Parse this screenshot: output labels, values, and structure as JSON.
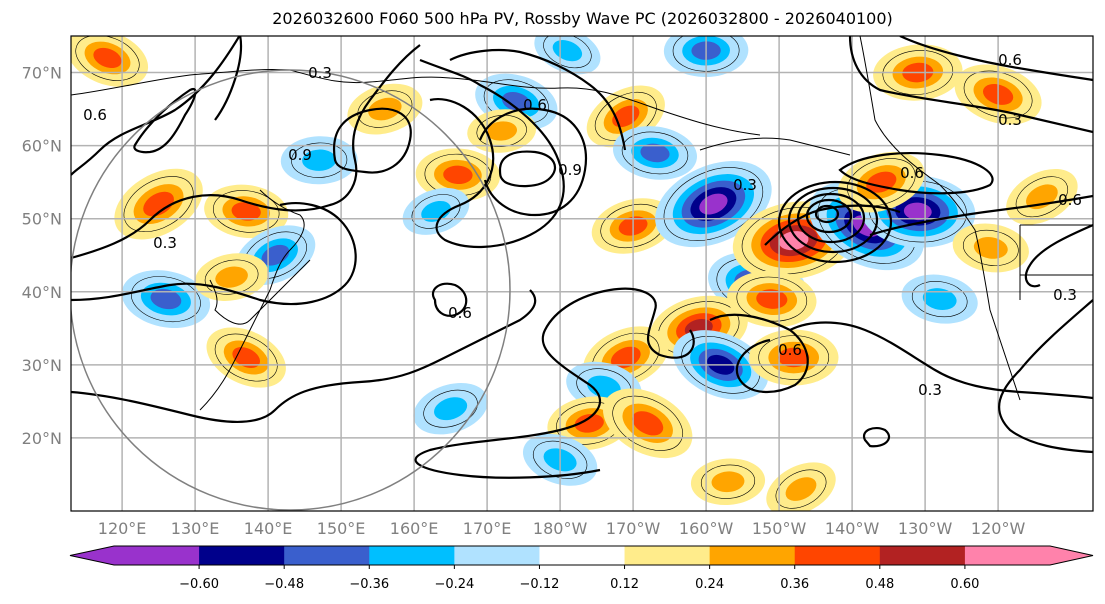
{
  "chart_data": {
    "type": "heatmap",
    "title": "2026032600 F060 500 hPa PV, Rossby Wave PC (2026032800 - 2026040100)",
    "projection": "cylindrical",
    "xlabel": "",
    "ylabel": "",
    "x_tick_labels": [
      "120°E",
      "130°E",
      "140°E",
      "150°E",
      "160°E",
      "170°E",
      "180°W",
      "170°W",
      "160°W",
      "150°W",
      "140°W",
      "130°W",
      "120°W"
    ],
    "x_ticks_lon": [
      120,
      130,
      140,
      150,
      160,
      170,
      180,
      190,
      200,
      210,
      220,
      230,
      240
    ],
    "y_tick_labels": [
      "70°N",
      "60°N",
      "50°N",
      "40°N",
      "30°N",
      "20°N"
    ],
    "y_ticks_lat": [
      70,
      60,
      50,
      40,
      30,
      20
    ],
    "xlim": [
      113,
      253
    ],
    "ylim": [
      10,
      75
    ],
    "grid": true,
    "colorbar": {
      "orientation": "horizontal",
      "extend": "both",
      "levels": [
        -0.6,
        -0.48,
        -0.36,
        -0.24,
        -0.12,
        0.12,
        0.24,
        0.36,
        0.48,
        0.6
      ],
      "tick_labels": [
        "−0.60",
        "−0.48",
        "−0.36",
        "−0.24",
        "−0.12",
        "0.12",
        "0.24",
        "0.36",
        "0.48",
        "0.60"
      ],
      "colors": [
        "#9932cc",
        "#00008b",
        "#3a5fcd",
        "#00bfff",
        "#b0e2ff",
        "#ffffff",
        "#ffec8b",
        "#ffa500",
        "#ff4500",
        "#b22222",
        "#ff82ab"
      ]
    },
    "contour_labels": [
      "0.3",
      "0.6",
      "0.9"
    ],
    "shaded_anomalies": [
      {
        "lon": 125,
        "lat": 52,
        "value": 0.45
      },
      {
        "lon": 137,
        "lat": 51,
        "value": 0.36
      },
      {
        "lon": 156,
        "lat": 65,
        "value": 0.3
      },
      {
        "lon": 118,
        "lat": 72,
        "value": 0.36
      },
      {
        "lon": 147,
        "lat": 58,
        "value": -0.3
      },
      {
        "lon": 141,
        "lat": 45,
        "value": -0.36
      },
      {
        "lon": 126,
        "lat": 39,
        "value": -0.4
      },
      {
        "lon": 135,
        "lat": 42,
        "value": 0.28
      },
      {
        "lon": 137,
        "lat": 31,
        "value": 0.36
      },
      {
        "lon": 166,
        "lat": 56,
        "value": 0.36
      },
      {
        "lon": 163,
        "lat": 51,
        "value": -0.24
      },
      {
        "lon": 174,
        "lat": 66,
        "value": -0.36
      },
      {
        "lon": 172,
        "lat": 62,
        "value": 0.24
      },
      {
        "lon": 189,
        "lat": 64,
        "value": 0.36
      },
      {
        "lon": 193,
        "lat": 59,
        "value": -0.36
      },
      {
        "lon": 190,
        "lat": 49,
        "value": 0.36
      },
      {
        "lon": 181,
        "lat": 73,
        "value": -0.24
      },
      {
        "lon": 200,
        "lat": 73,
        "value": -0.36
      },
      {
        "lon": 201,
        "lat": 52,
        "value": -0.66
      },
      {
        "lon": 207,
        "lat": 41,
        "value": -0.48
      },
      {
        "lon": 212,
        "lat": 47,
        "value": 0.66
      },
      {
        "lon": 222,
        "lat": 49,
        "value": -0.66
      },
      {
        "lon": 229,
        "lat": 51,
        "value": -0.6
      },
      {
        "lon": 224,
        "lat": 55,
        "value": 0.4
      },
      {
        "lon": 240,
        "lat": 67,
        "value": 0.4
      },
      {
        "lon": 229,
        "lat": 70,
        "value": 0.4
      },
      {
        "lon": 246,
        "lat": 53,
        "value": 0.3
      },
      {
        "lon": 239,
        "lat": 46,
        "value": 0.3
      },
      {
        "lon": 199,
        "lat": 35,
        "value": 0.48
      },
      {
        "lon": 202,
        "lat": 30,
        "value": -0.48
      },
      {
        "lon": 212,
        "lat": 31,
        "value": 0.4
      },
      {
        "lon": 189,
        "lat": 31,
        "value": 0.4
      },
      {
        "lon": 186,
        "lat": 27,
        "value": -0.3
      },
      {
        "lon": 184,
        "lat": 22,
        "value": 0.36
      },
      {
        "lon": 192,
        "lat": 22,
        "value": 0.45
      },
      {
        "lon": 209,
        "lat": 39,
        "value": 0.4
      },
      {
        "lon": 165,
        "lat": 24,
        "value": -0.3
      },
      {
        "lon": 180,
        "lat": 17,
        "value": -0.3
      },
      {
        "lon": 203,
        "lat": 14,
        "value": 0.28
      },
      {
        "lon": 213,
        "lat": 13,
        "value": 0.28
      },
      {
        "lon": 232,
        "lat": 39,
        "value": -0.3
      }
    ]
  }
}
